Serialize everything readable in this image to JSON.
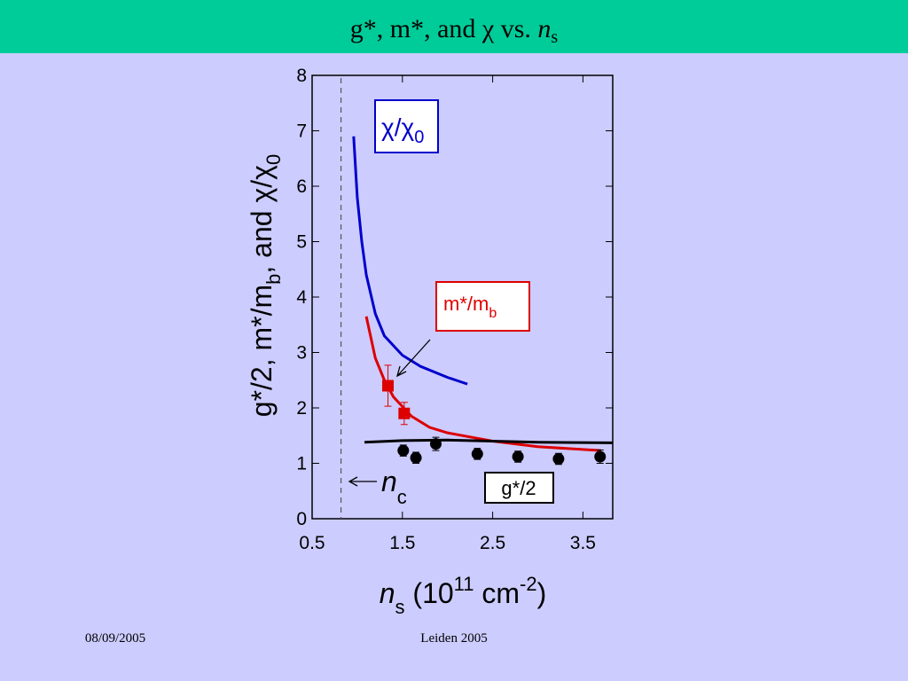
{
  "chart_data": {
    "type": "line",
    "title": [
      "g*, m*, and χ vs. ",
      "n",
      "s"
    ],
    "x_label": [
      "n",
      "s",
      " (10",
      "11",
      " cm",
      "-2",
      ")"
    ],
    "y_label": [
      "g*/2, m*/m",
      "b",
      ", and  χ/χ",
      "0"
    ],
    "xlim": [
      0.5,
      3.83
    ],
    "xticks": [
      0.5,
      1.5,
      2.5,
      3.5
    ],
    "ylim": [
      0,
      8
    ],
    "yticks": [
      0,
      1,
      2,
      3,
      4,
      5,
      6,
      7,
      8
    ],
    "series": [
      {
        "label": [
          "χ/χ",
          "0"
        ],
        "color": "#0000cc",
        "x": [
          0.96,
          1.0,
          1.05,
          1.1,
          1.2,
          1.3,
          1.5,
          1.7,
          2.0,
          2.22
        ],
        "values": [
          6.9,
          5.8,
          5.0,
          4.4,
          3.7,
          3.3,
          2.95,
          2.75,
          2.55,
          2.43
        ]
      },
      {
        "label": [
          "m*/m",
          "b"
        ],
        "color": "#dd0000",
        "x": [
          1.1,
          1.2,
          1.3,
          1.4,
          1.6,
          1.8,
          2.0,
          2.5,
          3.0,
          3.5,
          3.7
        ],
        "values": [
          3.65,
          2.9,
          2.5,
          2.2,
          1.85,
          1.65,
          1.55,
          1.4,
          1.3,
          1.25,
          1.23
        ]
      },
      {
        "label": [
          "g*/2"
        ],
        "color": "#000000",
        "x": [
          1.08,
          1.5,
          2.0,
          2.5,
          3.0,
          3.83
        ],
        "values": [
          1.38,
          1.41,
          1.42,
          1.4,
          1.38,
          1.37
        ]
      }
    ],
    "points": [
      {
        "marker": "square",
        "color": "#dd0000",
        "x": [
          1.34,
          1.52
        ],
        "values": [
          2.4,
          1.9
        ],
        "errors": [
          0.37,
          0.2
        ]
      },
      {
        "marker": "circle",
        "color": "#000000",
        "x": [
          1.51,
          1.65,
          1.87,
          2.33,
          2.78,
          3.23,
          3.69
        ],
        "values": [
          1.23,
          1.1,
          1.35,
          1.17,
          1.12,
          1.08,
          1.12
        ],
        "errors": [
          0.1,
          0.1,
          0.12,
          0.1,
          0.1,
          0.1,
          0.12
        ]
      }
    ],
    "threshold": {
      "x": 0.82,
      "label": [
        "n",
        "c"
      ]
    }
  },
  "footer": {
    "date": "08/09/2005",
    "place": "Leiden 2005"
  }
}
